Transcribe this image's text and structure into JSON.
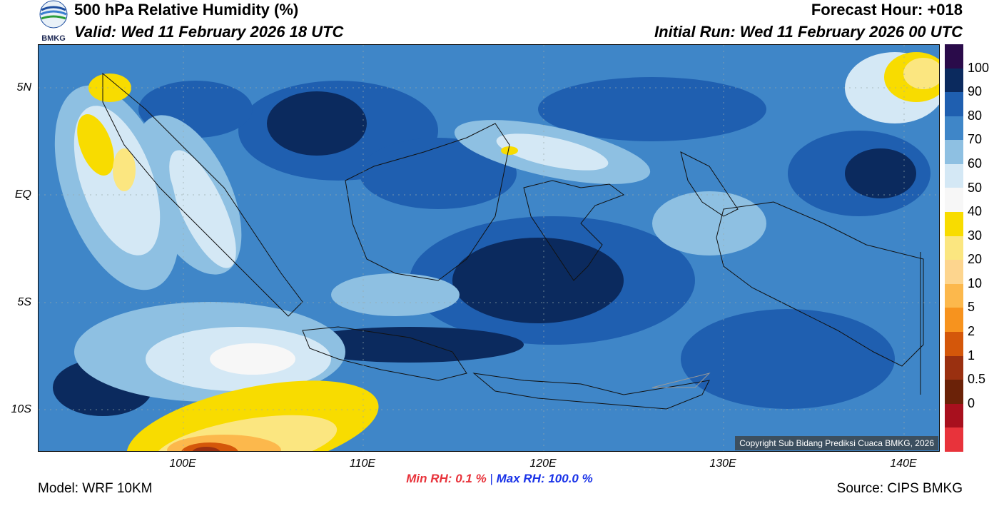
{
  "header": {
    "title": "500 hPa Relative Humidity (%)",
    "valid": "Valid: Wed 11 February 2026 18 UTC",
    "forecast_hour": "Forecast Hour: +018",
    "initial_run": "Initial Run: Wed 11 February 2026 00 UTC",
    "logo_text": "BMKG"
  },
  "map": {
    "lat_labels": [
      "5N",
      "EQ",
      "5S",
      "10S"
    ],
    "lon_labels": [
      "100E",
      "110E",
      "120E",
      "130E",
      "140E"
    ],
    "copyright": "Copyright Sub Bidang Prediksi Cuaca BMKG, 2026"
  },
  "colorbar": {
    "labels": [
      "100",
      "90",
      "80",
      "70",
      "60",
      "50",
      "40",
      "30",
      "20",
      "10",
      "5",
      "2",
      "1",
      "0.5",
      "0"
    ],
    "colors": [
      "#2a0b4a",
      "#0b2a5e",
      "#1f5fb0",
      "#3f86c8",
      "#8ec0e2",
      "#d4e8f5",
      "#f7f7f7",
      "#f8dc00",
      "#fbe680",
      "#fdd58e",
      "#fcb84c",
      "#f7931e",
      "#d4570a",
      "#9a3010",
      "#6b2208",
      "#a8101e",
      "#e8333b"
    ]
  },
  "stats": {
    "min_label": "Min RH:",
    "min_value": "0.1 %",
    "max_label": "Max RH: 100.0 %"
  },
  "footer": {
    "model": "Model: WRF 10KM",
    "source": "Source: CIPS BMKG"
  }
}
